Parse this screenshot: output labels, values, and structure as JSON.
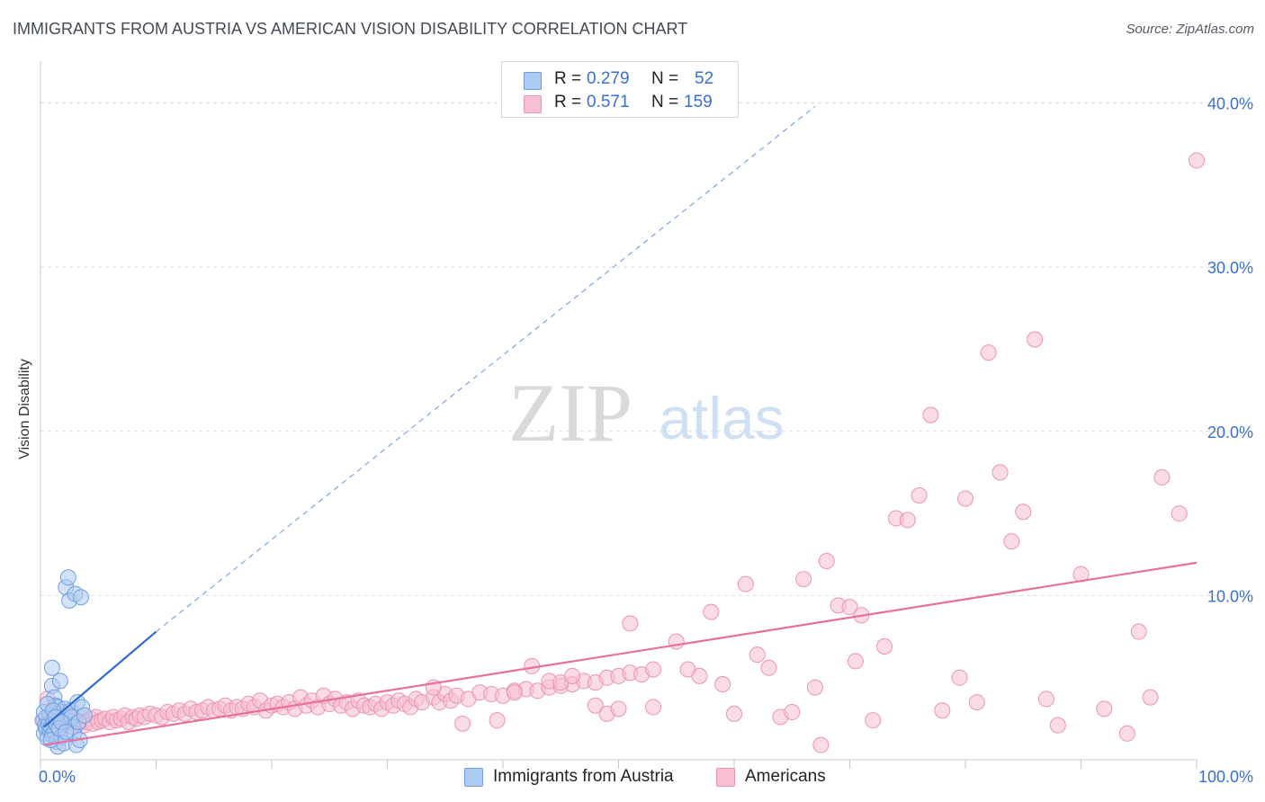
{
  "header": {
    "title": "IMMIGRANTS FROM AUSTRIA VS AMERICAN VISION DISABILITY CORRELATION CHART",
    "source": "Source: ZipAtlas.com"
  },
  "watermark": {
    "zip": "ZIP",
    "atlas": "atlas"
  },
  "stats": [
    {
      "r_label": "R =",
      "r_value": "0.279",
      "n_label": "N =",
      "n_value": "52",
      "color": "#aecbf1",
      "border": "#6f9de0"
    },
    {
      "r_label": "R =",
      "r_value": "0.571",
      "n_label": "N =",
      "n_value": "159",
      "color": "#f7bfd1",
      "border": "#ea94b1"
    }
  ],
  "legend": [
    {
      "label": "Immigrants from Austria",
      "color": "#aecbf1",
      "border": "#6f9de0"
    },
    {
      "label": "Americans",
      "color": "#f7bfd1",
      "border": "#ea94b1"
    }
  ],
  "chart_data": {
    "type": "scatter",
    "title": "IMMIGRANTS FROM AUSTRIA VS AMERICAN VISION DISABILITY CORRELATION CHART",
    "xlabel": "",
    "ylabel": "Vision Disability",
    "xlim": [
      0,
      100
    ],
    "ylim": [
      0,
      42
    ],
    "x_tick_labels": [
      {
        "value": 0,
        "label": "0.0%"
      },
      {
        "value": 100,
        "label": "100.0%"
      }
    ],
    "x_minor_ticks": [
      10,
      20,
      30,
      40,
      50,
      60,
      70,
      80,
      90
    ],
    "y_ticks": [
      {
        "value": 10,
        "label": "10.0%"
      },
      {
        "value": 20,
        "label": "20.0%"
      },
      {
        "value": 30,
        "label": "30.0%"
      },
      {
        "value": 40,
        "label": "40.0%"
      }
    ],
    "grid": "horizontal dashed",
    "series": [
      {
        "name": "Immigrants from Austria",
        "color": "#6f9de0",
        "fill": "#aecbf1",
        "trend": {
          "solid": [
            [
              0.3,
              2.0
            ],
            [
              10,
              7.8
            ]
          ],
          "dashed": [
            [
              10,
              7.8
            ],
            [
              67,
              39.8
            ]
          ],
          "color": "#2f6ad0"
        },
        "points": [
          [
            0.2,
            2.4
          ],
          [
            0.3,
            1.6
          ],
          [
            0.4,
            2.1
          ],
          [
            0.5,
            1.9
          ],
          [
            0.5,
            2.6
          ],
          [
            0.6,
            1.3
          ],
          [
            0.7,
            2.2
          ],
          [
            0.8,
            1.8
          ],
          [
            0.8,
            2.8
          ],
          [
            0.9,
            2.0
          ],
          [
            1.0,
            1.5
          ],
          [
            1.0,
            4.5
          ],
          [
            1.0,
            5.6
          ],
          [
            1.1,
            2.4
          ],
          [
            1.2,
            3.8
          ],
          [
            1.2,
            1.7
          ],
          [
            1.3,
            3.3
          ],
          [
            1.4,
            2.1
          ],
          [
            1.4,
            1.1
          ],
          [
            1.5,
            0.8
          ],
          [
            1.5,
            3.2
          ],
          [
            1.6,
            2.5
          ],
          [
            1.7,
            4.8
          ],
          [
            1.8,
            1.4
          ],
          [
            1.9,
            2.9
          ],
          [
            2.0,
            2.2
          ],
          [
            2.0,
            1.0
          ],
          [
            2.1,
            3.1
          ],
          [
            2.2,
            10.5
          ],
          [
            2.3,
            2.4
          ],
          [
            2.4,
            11.1
          ],
          [
            2.5,
            9.7
          ],
          [
            2.6,
            3.0
          ],
          [
            2.7,
            2.6
          ],
          [
            2.8,
            2.0
          ],
          [
            2.9,
            1.6
          ],
          [
            3.0,
            10.1
          ],
          [
            3.1,
            0.9
          ],
          [
            3.2,
            3.5
          ],
          [
            3.3,
            2.3
          ],
          [
            3.4,
            1.2
          ],
          [
            3.5,
            9.9
          ],
          [
            3.6,
            3.2
          ],
          [
            3.8,
            2.7
          ],
          [
            0.3,
            2.9
          ],
          [
            0.6,
            3.4
          ],
          [
            0.9,
            1.2
          ],
          [
            1.1,
            3.0
          ],
          [
            1.3,
            2.6
          ],
          [
            1.6,
            1.9
          ],
          [
            1.8,
            2.3
          ],
          [
            2.2,
            1.7
          ]
        ]
      },
      {
        "name": "Americans",
        "color": "#ea94b1",
        "fill": "#f7bfd1",
        "trend": {
          "solid": [
            [
              0.3,
              0.9
            ],
            [
              100,
              12.0
            ]
          ],
          "color": "#e8709a"
        },
        "points": [
          [
            0.3,
            2.4
          ],
          [
            0.6,
            3.7
          ],
          [
            0.8,
            2.0
          ],
          [
            1.0,
            2.6
          ],
          [
            1.3,
            2.3
          ],
          [
            1.5,
            2.8
          ],
          [
            1.8,
            2.1
          ],
          [
            2.0,
            2.5
          ],
          [
            2.3,
            2.2
          ],
          [
            2.5,
            2.7
          ],
          [
            2.8,
            2.0
          ],
          [
            3.0,
            2.4
          ],
          [
            3.3,
            2.2
          ],
          [
            3.5,
            2.6
          ],
          [
            3.8,
            2.1
          ],
          [
            4.0,
            2.3
          ],
          [
            4.3,
            2.5
          ],
          [
            4.5,
            2.2
          ],
          [
            4.8,
            2.6
          ],
          [
            5.0,
            2.3
          ],
          [
            5.3,
            2.4
          ],
          [
            5.6,
            2.5
          ],
          [
            6.0,
            2.3
          ],
          [
            6.3,
            2.6
          ],
          [
            6.6,
            2.4
          ],
          [
            7.0,
            2.5
          ],
          [
            7.3,
            2.7
          ],
          [
            7.6,
            2.3
          ],
          [
            8.0,
            2.6
          ],
          [
            8.3,
            2.5
          ],
          [
            8.6,
            2.7
          ],
          [
            9.0,
            2.6
          ],
          [
            9.5,
            2.8
          ],
          [
            10.0,
            2.7
          ],
          [
            10.5,
            2.6
          ],
          [
            11.0,
            2.9
          ],
          [
            11.5,
            2.8
          ],
          [
            12.0,
            3.0
          ],
          [
            12.5,
            2.8
          ],
          [
            13.0,
            3.1
          ],
          [
            13.5,
            2.9
          ],
          [
            14.0,
            3.0
          ],
          [
            14.5,
            3.2
          ],
          [
            15.0,
            3.0
          ],
          [
            15.5,
            3.1
          ],
          [
            16.0,
            3.3
          ],
          [
            16.5,
            3.0
          ],
          [
            17.0,
            3.2
          ],
          [
            17.5,
            3.1
          ],
          [
            18.0,
            3.4
          ],
          [
            18.5,
            3.2
          ],
          [
            19.0,
            3.6
          ],
          [
            19.5,
            3.0
          ],
          [
            20.0,
            3.3
          ],
          [
            20.5,
            3.4
          ],
          [
            21.0,
            3.2
          ],
          [
            21.5,
            3.5
          ],
          [
            22.0,
            3.1
          ],
          [
            22.5,
            3.8
          ],
          [
            23.0,
            3.3
          ],
          [
            23.5,
            3.6
          ],
          [
            24.0,
            3.2
          ],
          [
            24.5,
            3.9
          ],
          [
            25.0,
            3.4
          ],
          [
            25.5,
            3.7
          ],
          [
            26.0,
            3.3
          ],
          [
            26.5,
            3.5
          ],
          [
            27.0,
            3.1
          ],
          [
            27.5,
            3.6
          ],
          [
            28.0,
            3.3
          ],
          [
            28.5,
            3.2
          ],
          [
            29.0,
            3.4
          ],
          [
            29.5,
            3.1
          ],
          [
            30.0,
            3.5
          ],
          [
            30.5,
            3.3
          ],
          [
            31.0,
            3.6
          ],
          [
            31.5,
            3.4
          ],
          [
            32.0,
            3.2
          ],
          [
            32.5,
            3.7
          ],
          [
            33.0,
            3.5
          ],
          [
            34.0,
            3.8
          ],
          [
            34.5,
            3.5
          ],
          [
            35.0,
            4.0
          ],
          [
            35.5,
            3.6
          ],
          [
            36.0,
            3.9
          ],
          [
            37.0,
            3.7
          ],
          [
            38.0,
            4.1
          ],
          [
            39.0,
            4.0
          ],
          [
            40.0,
            3.9
          ],
          [
            41.0,
            4.2
          ],
          [
            42.0,
            4.3
          ],
          [
            43.0,
            4.2
          ],
          [
            44.0,
            4.4
          ],
          [
            45.0,
            4.5
          ],
          [
            46.0,
            4.6
          ],
          [
            47.0,
            4.8
          ],
          [
            48.0,
            4.7
          ],
          [
            49.0,
            5.0
          ],
          [
            50.0,
            5.1
          ],
          [
            51.0,
            5.3
          ],
          [
            52.0,
            5.2
          ],
          [
            53.0,
            5.5
          ],
          [
            34.0,
            4.4
          ],
          [
            36.5,
            2.2
          ],
          [
            39.5,
            2.4
          ],
          [
            41.0,
            4.1
          ],
          [
            42.5,
            5.7
          ],
          [
            44.0,
            4.8
          ],
          [
            45.0,
            4.7
          ],
          [
            46.0,
            5.1
          ],
          [
            48.0,
            3.3
          ],
          [
            49.0,
            2.8
          ],
          [
            50.0,
            3.1
          ],
          [
            51.0,
            8.3
          ],
          [
            53.0,
            3.2
          ],
          [
            55.0,
            7.2
          ],
          [
            56.0,
            5.5
          ],
          [
            57.0,
            5.1
          ],
          [
            58.0,
            9.0
          ],
          [
            59.0,
            4.6
          ],
          [
            60.0,
            2.8
          ],
          [
            61.0,
            10.7
          ],
          [
            62.0,
            6.4
          ],
          [
            63.0,
            5.6
          ],
          [
            64.0,
            2.6
          ],
          [
            65.0,
            2.9
          ],
          [
            66.0,
            11.0
          ],
          [
            67.0,
            4.4
          ],
          [
            68.0,
            12.1
          ],
          [
            69.0,
            9.4
          ],
          [
            70.0,
            9.3
          ],
          [
            71.0,
            8.8
          ],
          [
            72.0,
            2.4
          ],
          [
            73.0,
            6.9
          ],
          [
            74.0,
            14.7
          ],
          [
            75.0,
            14.6
          ],
          [
            76.0,
            16.1
          ],
          [
            77.0,
            21.0
          ],
          [
            78.0,
            3.0
          ],
          [
            80.0,
            15.9
          ],
          [
            81.0,
            3.5
          ],
          [
            82.0,
            24.8
          ],
          [
            83.0,
            17.5
          ],
          [
            84.0,
            13.3
          ],
          [
            85.0,
            15.1
          ],
          [
            86.0,
            25.6
          ],
          [
            87.0,
            3.7
          ],
          [
            88.0,
            2.1
          ],
          [
            90.0,
            11.3
          ],
          [
            92.0,
            3.1
          ],
          [
            94.0,
            1.6
          ],
          [
            95.0,
            7.8
          ],
          [
            96.0,
            3.8
          ],
          [
            97.0,
            17.2
          ],
          [
            98.5,
            15.0
          ],
          [
            100.0,
            36.5
          ],
          [
            67.5,
            0.9
          ],
          [
            70.5,
            6.0
          ],
          [
            79.5,
            5.0
          ]
        ]
      }
    ]
  }
}
